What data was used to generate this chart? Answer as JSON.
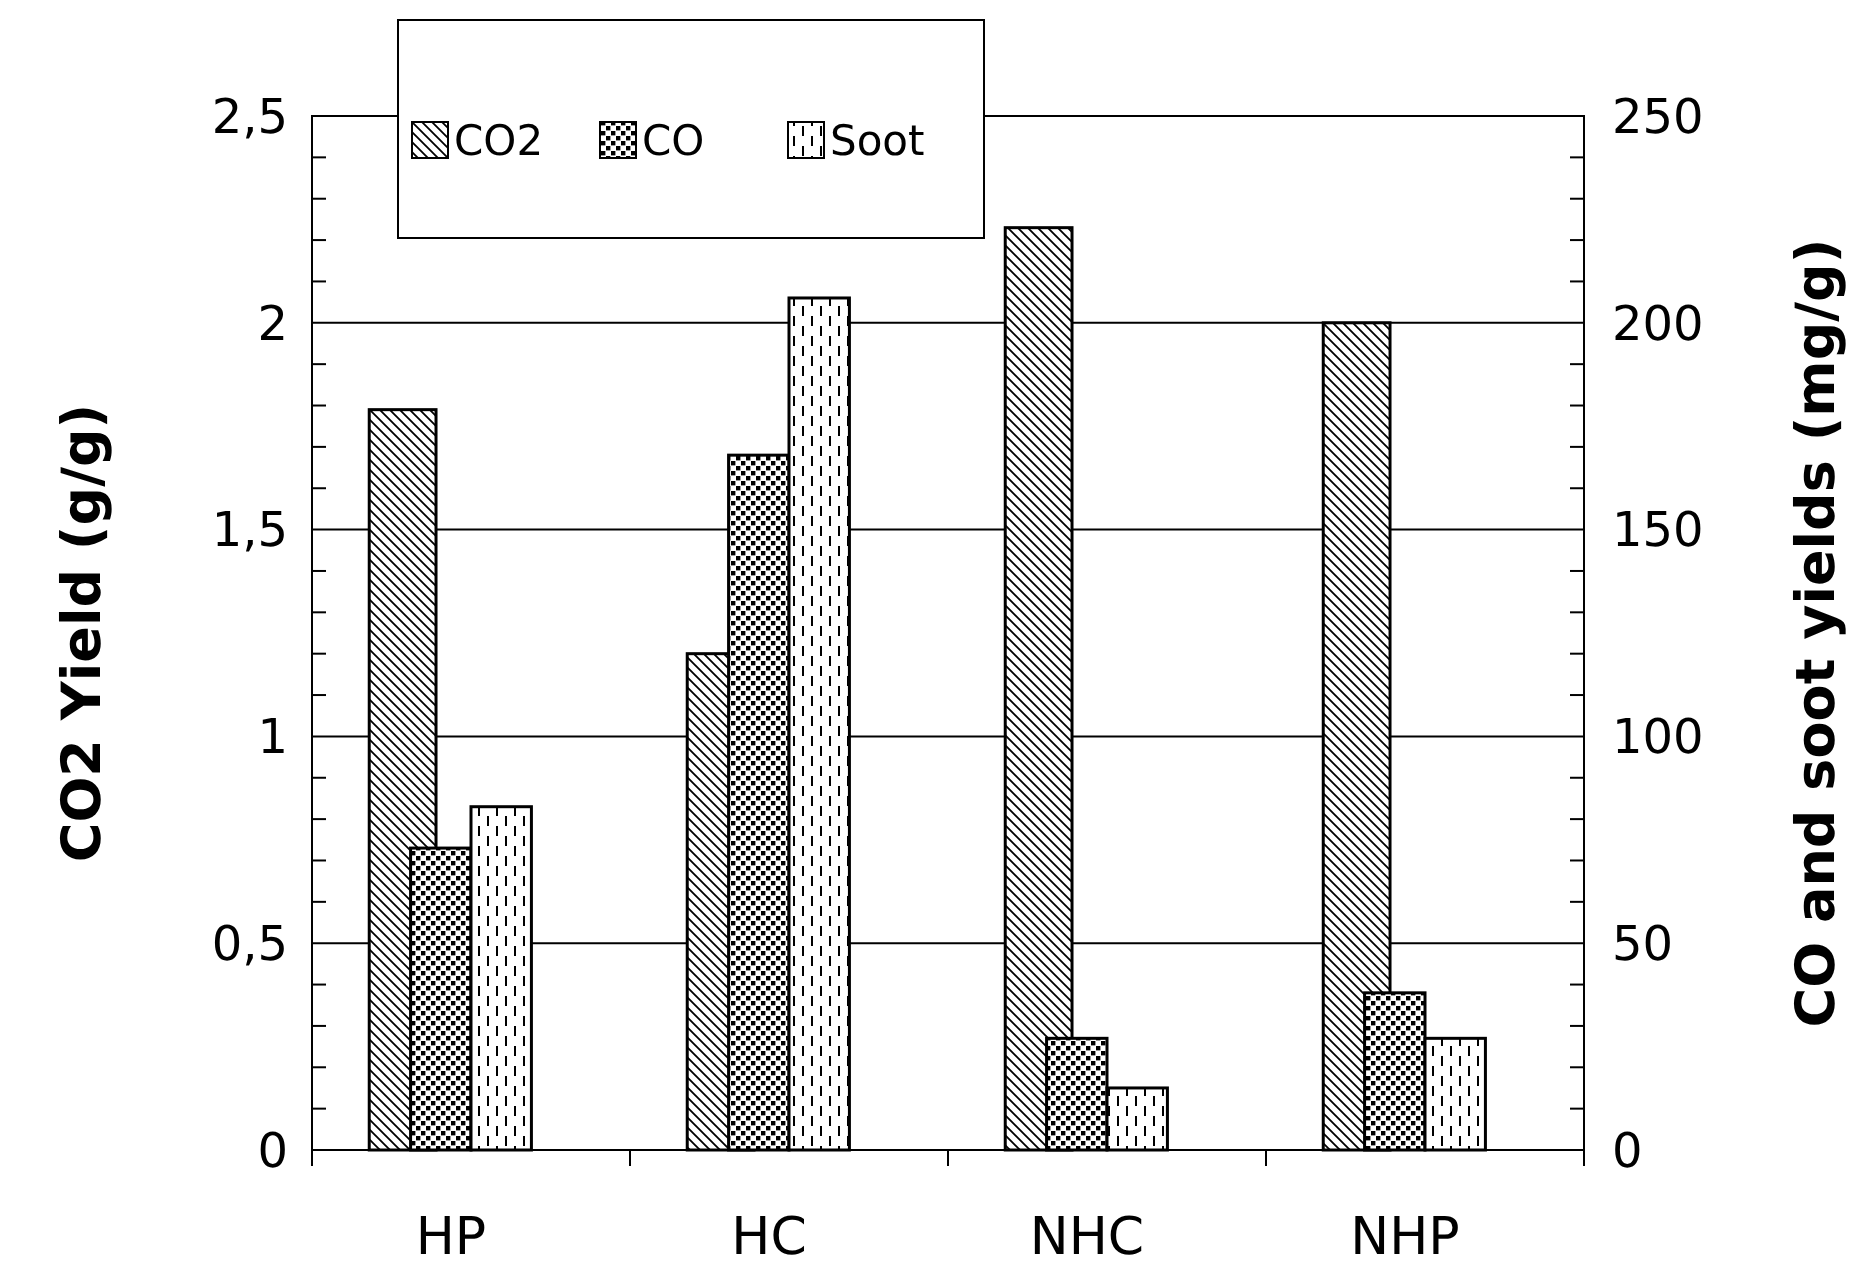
{
  "chart_data": {
    "type": "bar",
    "categories": [
      "HP",
      "HC",
      "NHC",
      "NHP"
    ],
    "ylabel": "CO2 Yield (g/g)",
    "y2label": "CO and soot yields (mg/g)",
    "series": [
      {
        "name": "CO2",
        "color": "#000000",
        "values": [
          1.79,
          1.2,
          2.23,
          2.0
        ]
      },
      {
        "name": "CO",
        "color": "#000000",
        "values": [
          73,
          168,
          27,
          38
        ],
        "axis": "y2"
      },
      {
        "name": "Soot",
        "color": "#000000",
        "values": [
          83,
          206,
          15,
          27
        ],
        "axis": "y2"
      }
    ],
    "ylim": [
      0,
      2.5
    ],
    "yticks": [
      0,
      {
        "value": 0.1,
        "label": null
      },
      {
        "value": 0.2,
        "label": null
      },
      {
        "value": 0.3,
        "label": null
      },
      {
        "value": 0.4,
        "label": null
      },
      {
        "value": 0.5,
        "label": "0,5"
      },
      {
        "value": 0.6,
        "label": null
      },
      {
        "value": 0.7,
        "label": null
      },
      {
        "value": 0.8,
        "label": null
      },
      {
        "value": 0.9,
        "label": null
      },
      1,
      {
        "value": 1.1,
        "label": null
      },
      {
        "value": 1.2,
        "label": null
      },
      {
        "value": 1.3,
        "label": null
      },
      {
        "value": 1.4,
        "label": null
      },
      {
        "value": 1.5,
        "label": "1,5"
      },
      {
        "value": 1.6,
        "label": null
      },
      {
        "value": 1.7,
        "label": null
      },
      {
        "value": 1.8,
        "label": null
      },
      {
        "value": 1.9,
        "label": null
      },
      2,
      {
        "value": 2.1,
        "label": null
      },
      {
        "value": 2.2,
        "label": null
      },
      {
        "value": 2.3,
        "label": null
      },
      {
        "value": 2.4,
        "label": null
      },
      {
        "value": 2.5,
        "label": "2,5"
      }
    ],
    "y2lim": [
      0,
      250
    ],
    "y2ticks": [
      0,
      {
        "value": 10,
        "label": null
      },
      {
        "value": 20,
        "label": null
      },
      {
        "value": 30,
        "label": null
      },
      {
        "value": 40,
        "label": null
      },
      50,
      {
        "value": 60,
        "label": null
      },
      {
        "value": 70,
        "label": null
      },
      {
        "value": 80,
        "label": null
      },
      {
        "value": 90,
        "label": null
      },
      100,
      {
        "value": 110,
        "label": null
      },
      {
        "value": 120,
        "label": null
      },
      {
        "value": 130,
        "label": null
      },
      {
        "value": 140,
        "label": null
      },
      150,
      {
        "value": 160,
        "label": null
      },
      {
        "value": 170,
        "label": null
      },
      {
        "value": 180,
        "label": null
      },
      {
        "value": 190,
        "label": null
      },
      200,
      {
        "value": 210,
        "label": null
      },
      {
        "value": 220,
        "label": null
      },
      {
        "value": 230,
        "label": null
      },
      {
        "value": 240,
        "label": null
      },
      250
    ],
    "grid": "y",
    "legend": "top left"
  }
}
